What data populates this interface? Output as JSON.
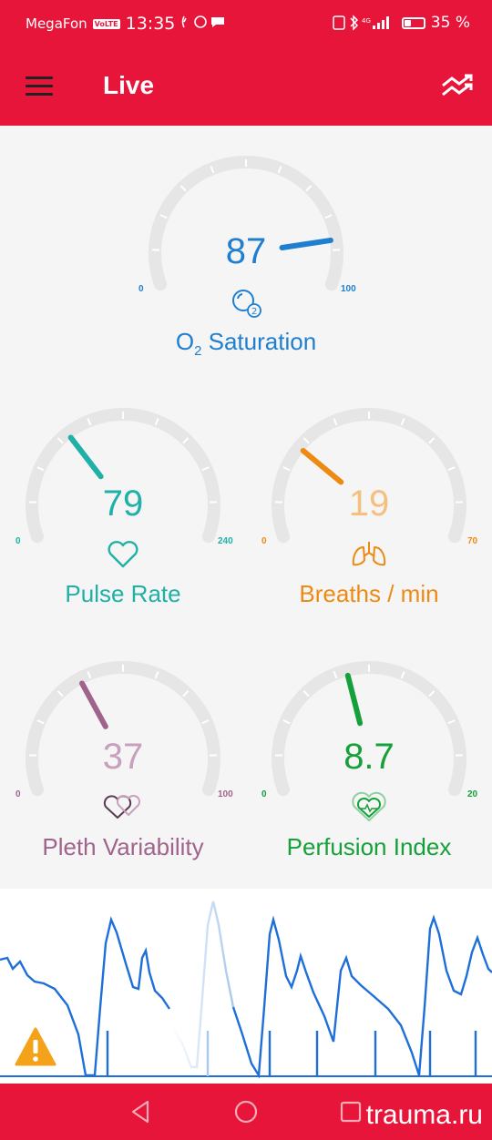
{
  "status_bar": {
    "carrier": "MegaFon",
    "volte": "VoLTE",
    "time": "13:35",
    "network": "4G",
    "battery_percent": "35 %",
    "battery_level": 0.35
  },
  "app_bar": {
    "title": "Live",
    "menu_icon": "hamburger-menu-icon",
    "trend_icon": "trend-chart-icon"
  },
  "gauges": {
    "spo2": {
      "value": "87",
      "min": "0",
      "max": "100",
      "label_main": "O",
      "label_sub": "2",
      "label_rest": " Saturation",
      "color": "#1e7fd0",
      "level": 87,
      "range": [
        0,
        100
      ],
      "icon": "oxygen-icon"
    },
    "pulse": {
      "value": "79",
      "min": "0",
      "max": "240",
      "label": "Pulse Rate",
      "color": "#1fb0a8",
      "level": 79,
      "range": [
        0,
        240
      ],
      "icon": "heart-icon"
    },
    "breaths": {
      "value": "19",
      "min": "0",
      "max": "70",
      "label": "Breaths / min",
      "color": "#ee8a14",
      "value_color": "#f5bf80",
      "level": 19,
      "range": [
        0,
        70
      ],
      "icon": "lungs-icon"
    },
    "pleth": {
      "value": "37",
      "min": "0",
      "max": "100",
      "label": "Pleth Variability",
      "color": "#a0648c",
      "value_color": "#c8a0bc",
      "level": 37,
      "range": [
        0,
        100
      ],
      "icon": "double-heart-icon"
    },
    "perfusion": {
      "value": "8.7",
      "min": "0",
      "max": "20",
      "label": "Perfusion Index",
      "color": "#16a03a",
      "level": 8.7,
      "range": [
        0,
        20
      ],
      "icon": "heart-pulse-icon"
    }
  },
  "waveform": {
    "color": "#1e6fd8",
    "alert_icon": "warning-icon"
  },
  "nav": {
    "back_icon": "back-triangle-icon",
    "home_icon": "home-circle-icon",
    "recents_icon": "recents-square-icon"
  },
  "watermark": "trauma.ru"
}
